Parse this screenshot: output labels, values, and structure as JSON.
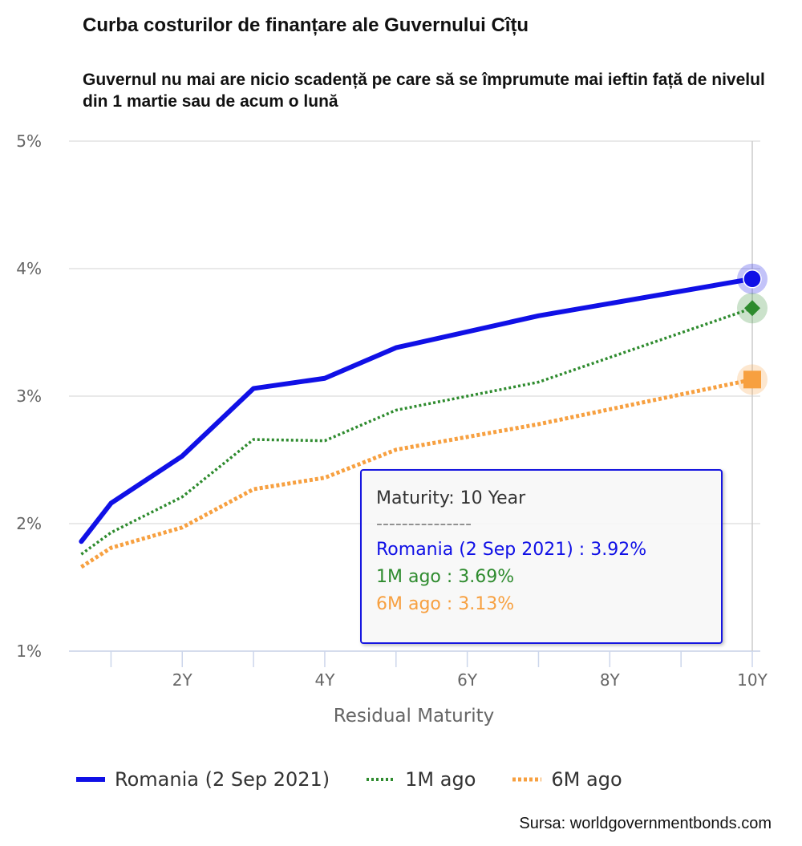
{
  "title": "Curba costurilor de finanțare ale Guvernului Cîțu",
  "subtitle": "Guvernul nu mai are nicio scadență pe care să se împrumute mai ieftin față de nivelul din 1 martie sau de acum o lună",
  "source": "Sursa: worldgovernmentbonds.com",
  "colors": {
    "romania": "#1010e6",
    "m1": "#2e8b2e",
    "m6": "#f7a040"
  },
  "chart_data": {
    "type": "line",
    "xlabel": "Residual Maturity",
    "ylabel": "",
    "xlim": [
      0.5,
      10
    ],
    "ylim": [
      1,
      5
    ],
    "x_ticks": [
      2,
      4,
      6,
      8,
      10
    ],
    "x_tick_labels": [
      "2Y",
      "4Y",
      "6Y",
      "8Y",
      "10Y"
    ],
    "y_ticks": [
      1,
      2,
      3,
      4,
      5
    ],
    "y_tick_labels": [
      "1%",
      "2%",
      "3%",
      "4%",
      "5%"
    ],
    "x": [
      0.583,
      1,
      2,
      3,
      4,
      5,
      7,
      10
    ],
    "series": [
      {
        "name": "Romania (2 Sep 2021)",
        "key": "romania",
        "values": [
          1.86,
          2.16,
          2.53,
          3.06,
          3.14,
          3.38,
          3.63,
          3.92
        ]
      },
      {
        "name": "1M ago",
        "key": "m1",
        "values": [
          1.76,
          1.93,
          2.21,
          2.66,
          2.65,
          2.89,
          3.11,
          3.69
        ]
      },
      {
        "name": "6M ago",
        "key": "m6",
        "values": [
          1.66,
          1.81,
          1.97,
          2.27,
          2.36,
          2.58,
          2.78,
          3.13
        ]
      }
    ],
    "tooltip": {
      "header": "Maturity: 10 Year",
      "separator": "---------------",
      "rows": [
        {
          "key": "romania",
          "label": "Romania (2 Sep 2021)",
          "value": "3.92%"
        },
        {
          "key": "m1",
          "label": "1M ago",
          "value": "3.69%"
        },
        {
          "key": "m6",
          "label": "6M ago",
          "value": "3.13%"
        }
      ]
    },
    "legend_position": "bottom"
  }
}
